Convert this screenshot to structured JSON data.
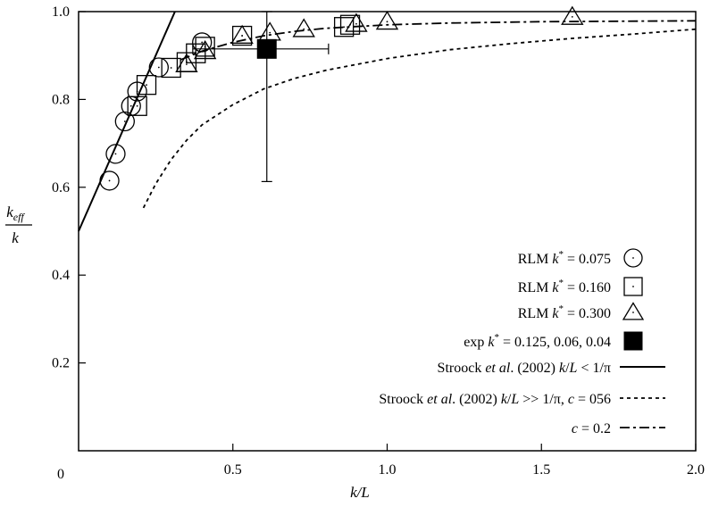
{
  "chart_data": {
    "type": "scatter",
    "xlabel": "k/L",
    "ylabel": {
      "numerator": "k",
      "numerator_sub": "eff",
      "denominator": "k"
    },
    "xlim": [
      0,
      2.0
    ],
    "ylim": [
      0.0,
      1.0
    ],
    "x_ticks": [
      {
        "value": 0.5,
        "label": "0.5"
      },
      {
        "value": 1.0,
        "label": "1.0"
      },
      {
        "value": 1.5,
        "label": "1.5"
      },
      {
        "value": 2.0,
        "label": "2.0"
      }
    ],
    "y_ticks": [
      {
        "value": 0.2,
        "label": "0.2"
      },
      {
        "value": 0.4,
        "label": "0.4"
      },
      {
        "value": 0.6,
        "label": "0.6"
      },
      {
        "value": 0.8,
        "label": "0.8"
      },
      {
        "value": 1.0,
        "label": "1.0"
      }
    ],
    "origin_label": "0",
    "grid": false,
    "legend_position": "bottom-right",
    "series": [
      {
        "name": "RLM k* = 0.075",
        "legend_parts": [
          "RLM ",
          "k",
          "*",
          " = 0.075"
        ],
        "marker": "circle",
        "points": [
          [
            0.1,
            0.615
          ],
          [
            0.12,
            0.676
          ],
          [
            0.15,
            0.75
          ],
          [
            0.17,
            0.785
          ],
          [
            0.19,
            0.818
          ],
          [
            0.26,
            0.873
          ],
          [
            0.4,
            0.93
          ]
        ]
      },
      {
        "name": "RLM k* = 0.160",
        "legend_parts": [
          "RLM ",
          "k",
          "*",
          " = 0.160"
        ],
        "marker": "square",
        "points": [
          [
            0.19,
            0.785
          ],
          [
            0.22,
            0.833
          ],
          [
            0.3,
            0.872
          ],
          [
            0.35,
            0.885
          ],
          [
            0.38,
            0.905
          ],
          [
            0.41,
            0.92
          ],
          [
            0.53,
            0.945
          ],
          [
            0.86,
            0.965
          ],
          [
            0.88,
            0.97
          ]
        ]
      },
      {
        "name": "RLM k* = 0.300",
        "legend_parts": [
          "RLM ",
          "k",
          "*",
          " = 0.300"
        ],
        "marker": "triangle",
        "points": [
          [
            0.35,
            0.88
          ],
          [
            0.41,
            0.91
          ],
          [
            0.53,
            0.945
          ],
          [
            0.62,
            0.952
          ],
          [
            0.73,
            0.96
          ],
          [
            0.9,
            0.972
          ],
          [
            1.0,
            0.977
          ],
          [
            1.6,
            0.988
          ]
        ]
      },
      {
        "name": "exp k* = 0.125, 0.06, 0.04",
        "legend_parts": [
          "exp ",
          "k",
          "*",
          " = 0.125, 0.06, 0.04"
        ],
        "marker": "filled-square",
        "points": [
          [
            0.61,
            0.915
          ]
        ],
        "error_x": [
          [
            0.37,
            0.81
          ]
        ],
        "error_y": [
          [
            0.613,
            1.0
          ]
        ]
      }
    ],
    "curves": [
      {
        "name": "Stroock et al. (2002) k/L < 1/π",
        "legend_parts": [
          "Stroock ",
          "et al",
          ". (2002) ",
          "k",
          "/",
          "L",
          " < 1/π"
        ],
        "style": "solid",
        "points": [
          [
            0.0,
            0.5
          ],
          [
            0.3124,
            1.0
          ]
        ]
      },
      {
        "name": "Stroock et al. (2002) k/L >> 1/π, c = 056",
        "legend_parts": [
          "Stroock ",
          "et al",
          ". (2002) ",
          "k",
          "/",
          "L",
          " >> 1/π, ",
          "c",
          " = 056"
        ],
        "style": "dotted",
        "points": [
          [
            0.21,
            0.553
          ],
          [
            0.25,
            0.608
          ],
          [
            0.3,
            0.663
          ],
          [
            0.35,
            0.707
          ],
          [
            0.4,
            0.742
          ],
          [
            0.5,
            0.788
          ],
          [
            0.6,
            0.824
          ],
          [
            0.7,
            0.848
          ],
          [
            0.8,
            0.866
          ],
          [
            1.0,
            0.893
          ],
          [
            1.2,
            0.913
          ],
          [
            1.4,
            0.927
          ],
          [
            1.6,
            0.939
          ],
          [
            1.8,
            0.949
          ],
          [
            2.0,
            0.96
          ]
        ]
      },
      {
        "name": "c = 0.2",
        "legend_parts": [
          "c",
          " = 0.2"
        ],
        "style": "dash-dot",
        "points": [
          [
            0.33,
            0.89
          ],
          [
            0.4,
            0.91
          ],
          [
            0.5,
            0.93
          ],
          [
            0.6,
            0.945
          ],
          [
            0.7,
            0.955
          ],
          [
            0.8,
            0.962
          ],
          [
            1.0,
            0.97
          ],
          [
            1.2,
            0.974
          ],
          [
            1.5,
            0.977
          ],
          [
            2.0,
            0.979
          ]
        ]
      }
    ]
  }
}
